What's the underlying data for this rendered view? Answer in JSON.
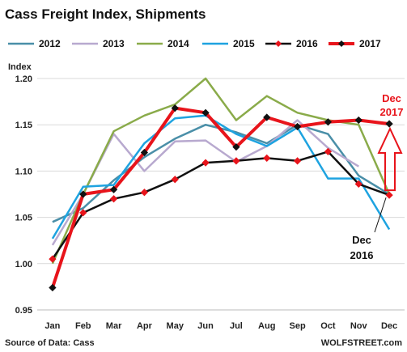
{
  "chart_data": {
    "type": "line",
    "title": "Cass Freight Index,  Shipments",
    "ylabel": "Index",
    "xlabel": "",
    "categories": [
      "Jan",
      "Feb",
      "Mar",
      "Apr",
      "May",
      "Jun",
      "Jul",
      "Aug",
      "Sep",
      "Oct",
      "Nov",
      "Dec"
    ],
    "ylim": [
      0.95,
      1.2
    ],
    "yticks": [
      "0.95",
      "1.00",
      "1.05",
      "1.10",
      "1.15",
      "1.20"
    ],
    "grid": "horizontal",
    "legend_position": "top",
    "series": [
      {
        "name": "2012",
        "color": "#4a8fa8",
        "marker": "none",
        "values": [
          1.045,
          1.06,
          1.09,
          1.115,
          1.135,
          1.15,
          1.142,
          1.13,
          1.15,
          1.14,
          1.095,
          1.075
        ]
      },
      {
        "name": "2013",
        "color": "#b8a9cf",
        "marker": "none",
        "values": [
          1.02,
          1.075,
          1.14,
          1.1,
          1.132,
          1.133,
          1.11,
          1.127,
          1.155,
          1.125,
          1.105,
          null
        ]
      },
      {
        "name": "2014",
        "color": "#8aab4a",
        "marker": "none",
        "values": [
          1.0,
          1.075,
          1.143,
          1.16,
          1.172,
          1.2,
          1.155,
          1.181,
          1.163,
          1.155,
          1.15,
          1.075
        ]
      },
      {
        "name": "2015",
        "color": "#1ea3e0",
        "marker": "none",
        "values": [
          1.027,
          1.083,
          1.085,
          1.13,
          1.157,
          1.16,
          1.14,
          1.127,
          1.147,
          1.092,
          1.092,
          1.037
        ]
      },
      {
        "name": "2016",
        "color": "#111111",
        "marker": "diamond",
        "values": [
          1.005,
          1.055,
          1.07,
          1.077,
          1.091,
          1.109,
          1.111,
          1.114,
          1.111,
          1.121,
          1.086,
          1.074
        ]
      },
      {
        "name": "2017",
        "color": "#e8141b",
        "marker": "diamond",
        "values": [
          0.974,
          1.075,
          1.08,
          1.12,
          1.168,
          1.163,
          1.126,
          1.158,
          1.148,
          1.153,
          1.155,
          1.151
        ]
      }
    ],
    "annotations": {
      "dec_2017": [
        "Dec",
        "2017"
      ],
      "dec_2016": [
        "Dec",
        "2016"
      ]
    },
    "source": "Source of Data: Cass",
    "watermark": "WOLFSTREET.com"
  }
}
